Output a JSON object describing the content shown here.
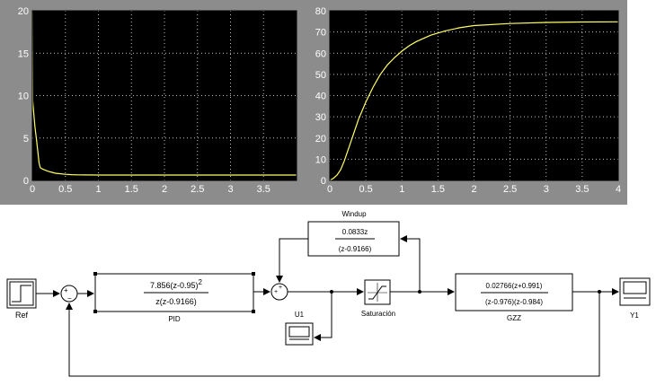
{
  "colors": {
    "panel_bg": "#8c8c8c",
    "plot_bg": "#000000",
    "grid": "#ffffff",
    "trace": "#ffff66",
    "tick_text": "#ffffff",
    "block_line": "#000000"
  },
  "chart_data": [
    {
      "type": "line",
      "xlim": [
        0,
        4
      ],
      "ylim": [
        0,
        20
      ],
      "xticks": [
        "0",
        "0.5",
        "1",
        "1.5",
        "2",
        "2.5",
        "3",
        "3.5"
      ],
      "yticks": [
        "0",
        "5",
        "10",
        "15",
        "20"
      ],
      "grid": true,
      "series": [
        {
          "x": [
            0,
            0.005,
            0.02,
            0.04,
            0.06,
            0.08,
            0.1,
            0.12,
            0.15,
            0.2,
            0.25,
            0.3,
            0.35,
            0.4,
            0.5,
            0.6,
            0.7,
            0.8,
            1.0,
            1.5,
            2.0,
            3.0,
            4.0
          ],
          "y": [
            20,
            9.4,
            8.0,
            6.3,
            5.0,
            3.6,
            2.1,
            1.5,
            1.35,
            1.2,
            1.05,
            0.95,
            0.85,
            0.8,
            0.72,
            0.68,
            0.66,
            0.65,
            0.64,
            0.63,
            0.63,
            0.63,
            0.63
          ]
        }
      ]
    },
    {
      "type": "line",
      "xlim": [
        0,
        4
      ],
      "ylim": [
        0,
        80
      ],
      "xticks": [
        "0",
        "0.5",
        "1",
        "1.5",
        "2",
        "2.5",
        "3",
        "3.5",
        "4"
      ],
      "yticks": [
        "0",
        "10",
        "20",
        "30",
        "40",
        "50",
        "60",
        "70",
        "80"
      ],
      "grid": true,
      "series": [
        {
          "x": [
            0,
            0.05,
            0.1,
            0.15,
            0.2,
            0.3,
            0.4,
            0.5,
            0.6,
            0.7,
            0.8,
            0.9,
            1.0,
            1.1,
            1.2,
            1.4,
            1.6,
            1.8,
            2.0,
            2.5,
            3.0,
            3.5,
            4.0
          ],
          "y": [
            0,
            1,
            2.5,
            5,
            9,
            19,
            29,
            37,
            44,
            50,
            54.5,
            58,
            61,
            63.5,
            65.5,
            68.5,
            70.5,
            72,
            73,
            74,
            74.5,
            74.7,
            74.8
          ]
        }
      ]
    }
  ],
  "diagram": {
    "ref_label": "Ref",
    "sum1_signs": {
      "top": "+",
      "bottom": "−"
    },
    "sum2_signs": {
      "top": "+",
      "left": "+"
    },
    "pid": {
      "num": "7.856(z-0.95)",
      "num_exp": "2",
      "den": "z(z-0.9166)",
      "label": "PID"
    },
    "windup": {
      "title": "Windup",
      "num": "0.0833z",
      "den": "(z-0.9166)"
    },
    "saturation_label": "Saturación",
    "gzz": {
      "num": "0.02766(z+0.991)",
      "den": "(z-0.976)(z-0.984)",
      "label": "GZZ"
    },
    "u1_label": "U1",
    "y1_label": "Y1"
  }
}
